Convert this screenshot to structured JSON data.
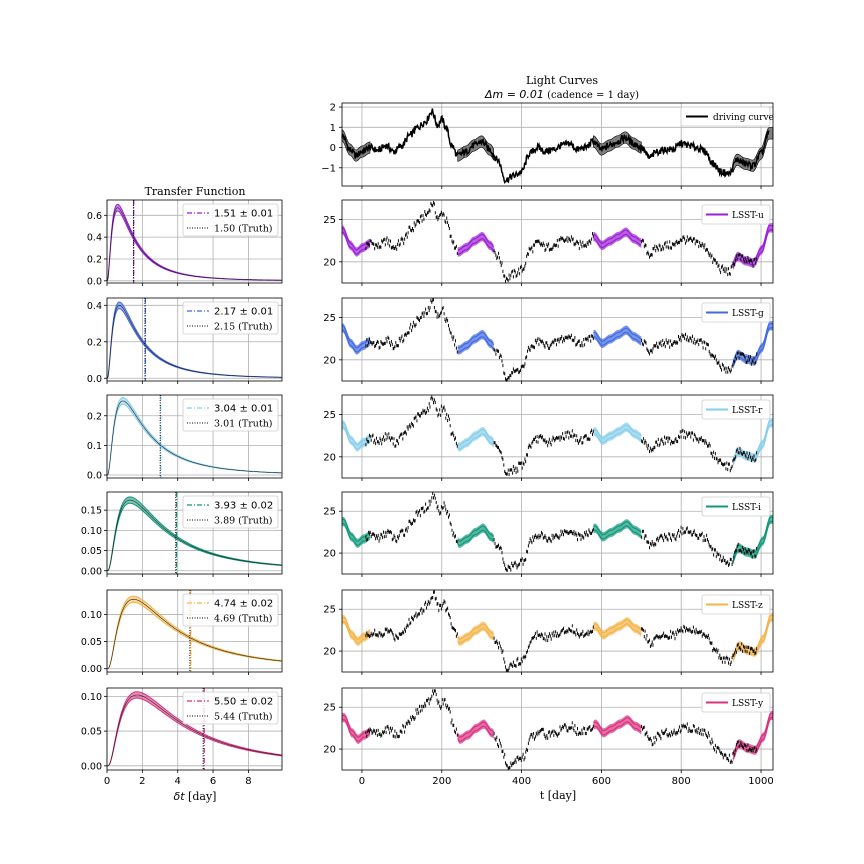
{
  "figure": {
    "left_title": "Transfer Function",
    "right_title_line1": "Light Curves",
    "right_title_math": "Δm = 0.01",
    "right_title_suffix": " (cadence = 1 day)",
    "left_xlabel_math": "δt",
    "left_xlabel_unit": " [day]",
    "right_xlabel": "t [day]"
  },
  "chart_data": [
    {
      "type": "line",
      "panel": "driving-curve",
      "xlim": [
        -50,
        1030
      ],
      "ylim": [
        -1.9,
        2.2
      ],
      "xticks": [
        0,
        200,
        400,
        600,
        800,
        1000
      ],
      "yticks": [
        -1,
        0,
        1,
        2
      ],
      "ytick_labels": [
        "−1",
        "0",
        "1",
        "2"
      ],
      "grid": true,
      "legend": {
        "label": "driving curve",
        "color": "#000000",
        "placement": "top-right"
      },
      "driving_curve_points": [
        [
          -50,
          0.6
        ],
        [
          -30,
          -0.1
        ],
        [
          -15,
          -0.4
        ],
        [
          0,
          -0.2
        ],
        [
          20,
          0.0
        ],
        [
          40,
          -0.15
        ],
        [
          60,
          0.1
        ],
        [
          80,
          -0.2
        ],
        [
          100,
          0.1
        ],
        [
          120,
          0.6
        ],
        [
          140,
          1.0
        ],
        [
          160,
          1.3
        ],
        [
          175,
          1.8
        ],
        [
          190,
          1.1
        ],
        [
          200,
          1.4
        ],
        [
          210,
          1.0
        ],
        [
          225,
          0.1
        ],
        [
          240,
          -0.4
        ],
        [
          260,
          -0.2
        ],
        [
          280,
          0.1
        ],
        [
          300,
          0.3
        ],
        [
          320,
          -0.1
        ],
        [
          340,
          -0.6
        ],
        [
          360,
          -1.6
        ],
        [
          380,
          -1.4
        ],
        [
          400,
          -1.2
        ],
        [
          420,
          -0.3
        ],
        [
          440,
          0.0
        ],
        [
          460,
          -0.2
        ],
        [
          480,
          -0.1
        ],
        [
          500,
          0.1
        ],
        [
          520,
          0.2
        ],
        [
          540,
          -0.1
        ],
        [
          560,
          0.0
        ],
        [
          580,
          0.3
        ],
        [
          600,
          -0.1
        ],
        [
          620,
          0.1
        ],
        [
          640,
          0.3
        ],
        [
          660,
          0.5
        ],
        [
          680,
          0.2
        ],
        [
          700,
          0.0
        ],
        [
          720,
          -0.5
        ],
        [
          740,
          -0.2
        ],
        [
          760,
          -0.1
        ],
        [
          780,
          -0.1
        ],
        [
          800,
          0.2
        ],
        [
          820,
          0.1
        ],
        [
          840,
          0.0
        ],
        [
          860,
          -0.2
        ],
        [
          880,
          -0.8
        ],
        [
          900,
          -1.2
        ],
        [
          920,
          -1.3
        ],
        [
          940,
          -0.6
        ],
        [
          960,
          -0.8
        ],
        [
          980,
          -0.9
        ],
        [
          1000,
          -0.3
        ],
        [
          1020,
          0.7
        ]
      ],
      "uncertainty_band_segments": [
        [
          -50,
          20
        ],
        [
          240,
          330
        ],
        [
          580,
          700
        ],
        [
          930,
          1030
        ]
      ]
    }
  ],
  "bands": [
    {
      "name": "LSST-u",
      "color": "#9b1fd6",
      "fit_label": "1.51 ± 0.01",
      "truth_label": "1.50 (Truth)",
      "lag": 1.51,
      "truth": 1.5,
      "tf_ylim": [
        -0.02,
        0.74
      ],
      "tf_yticks": [
        0.0,
        0.2,
        0.4,
        0.6
      ],
      "tf_ytick_labels": [
        "0.0",
        "0.2",
        "0.4",
        "0.6"
      ],
      "tf_peak": 0.67,
      "tf_peak_at": 0.6
    },
    {
      "name": "LSST-g",
      "color": "#4169e1",
      "fit_label": "2.17 ± 0.01",
      "truth_label": "2.15 (Truth)",
      "lag": 2.17,
      "truth": 2.15,
      "tf_ylim": [
        -0.015,
        0.44
      ],
      "tf_yticks": [
        0.0,
        0.2,
        0.4
      ],
      "tf_ytick_labels": [
        "0.0",
        "0.2",
        "0.4"
      ],
      "tf_peak": 0.4,
      "tf_peak_at": 0.7
    },
    {
      "name": "LSST-r",
      "color": "#87ceeb",
      "fit_label": "3.04 ± 0.01",
      "truth_label": "3.01 (Truth)",
      "lag": 3.04,
      "truth": 3.01,
      "tf_ylim": [
        -0.01,
        0.27
      ],
      "tf_yticks": [
        0.0,
        0.1,
        0.2
      ],
      "tf_ytick_labels": [
        "0.0",
        "0.1",
        "0.2"
      ],
      "tf_peak": 0.25,
      "tf_peak_at": 0.9
    },
    {
      "name": "LSST-i",
      "color": "#10987a",
      "fit_label": "3.93 ± 0.02",
      "truth_label": "3.89 (Truth)",
      "lag": 3.93,
      "truth": 3.89,
      "tf_ylim": [
        -0.008,
        0.195
      ],
      "tf_yticks": [
        0.0,
        0.05,
        0.1,
        0.15
      ],
      "tf_ytick_labels": [
        "0.00",
        "0.05",
        "0.10",
        "0.15"
      ],
      "tf_peak": 0.175,
      "tf_peak_at": 1.3
    },
    {
      "name": "LSST-z",
      "color": "#f4b447",
      "fit_label": "4.74 ± 0.02",
      "truth_label": "4.69 (Truth)",
      "lag": 4.74,
      "truth": 4.69,
      "tf_ylim": [
        -0.006,
        0.145
      ],
      "tf_yticks": [
        0.0,
        0.05,
        0.1
      ],
      "tf_ytick_labels": [
        "0.00",
        "0.05",
        "0.10"
      ],
      "tf_peak": 0.128,
      "tf_peak_at": 1.5
    },
    {
      "name": "LSST-y",
      "color": "#d9307f",
      "fit_label": "5.50 ± 0.02",
      "truth_label": "5.44 (Truth)",
      "lag": 5.5,
      "truth": 5.44,
      "tf_ylim": [
        -0.006,
        0.112
      ],
      "tf_yticks": [
        0.0,
        0.05,
        0.1
      ],
      "tf_ytick_labels": [
        "0.00",
        "0.05",
        "0.10"
      ],
      "tf_peak": 0.102,
      "tf_peak_at": 1.7
    }
  ],
  "tf_axis": {
    "xlim": [
      0,
      9.9
    ],
    "xticks": [
      0,
      2,
      4,
      6,
      8
    ],
    "grid": true
  },
  "lc_axis": {
    "xlim": [
      -50,
      1030
    ],
    "ylim": [
      17.5,
      27.3
    ],
    "yticks": [
      20,
      25
    ],
    "xticks": [
      0,
      200,
      400,
      600,
      800,
      1000
    ],
    "grid": true,
    "band_segments": [
      [
        -50,
        20
      ],
      [
        240,
        330
      ],
      [
        580,
        700
      ],
      [
        930,
        1030
      ]
    ]
  },
  "x_tick_labels": [
    "0",
    "200",
    "400",
    "600",
    "800",
    "1000"
  ],
  "tf_x_tick_labels": [
    "0",
    "2",
    "4",
    "6",
    "8"
  ]
}
